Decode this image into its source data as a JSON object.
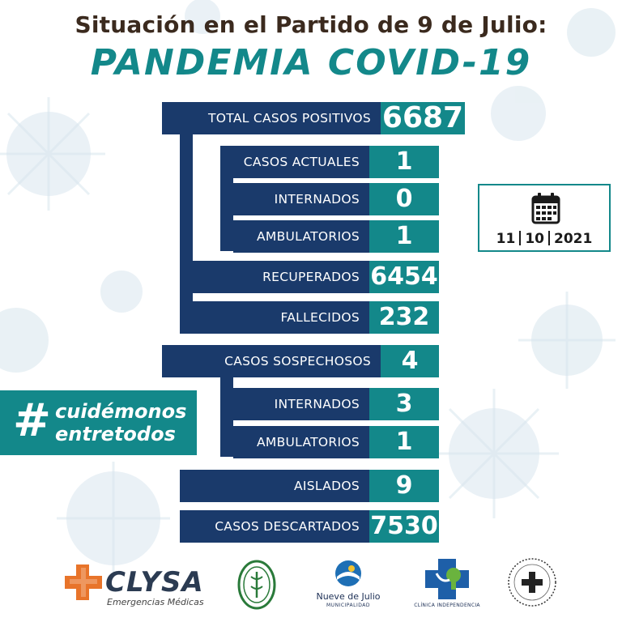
{
  "header": {
    "line1": "Situación en el Partido de 9 de Julio:",
    "line2": "PANDEMIA COVID-19"
  },
  "stats": {
    "total_positivos": {
      "label": "TOTAL CASOS POSITIVOS",
      "value": "6687"
    },
    "casos_actuales": {
      "label": "CASOS ACTUALES",
      "value": "1"
    },
    "internados_actuales": {
      "label": "INTERNADOS",
      "value": "0"
    },
    "ambulatorios_actuales": {
      "label": "AMBULATORIOS",
      "value": "1"
    },
    "recuperados": {
      "label": "RECUPERADOS",
      "value": "6454"
    },
    "fallecidos": {
      "label": "FALLECIDOS",
      "value": "232"
    },
    "sospechosos": {
      "label": "CASOS SOSPECHOSOS",
      "value": "4"
    },
    "internados_sospechosos": {
      "label": "INTERNADOS",
      "value": "3"
    },
    "ambulatorios_sospechosos": {
      "label": "AMBULATORIOS",
      "value": "1"
    },
    "aislados": {
      "label": "AISLADOS",
      "value": "9"
    },
    "descartados": {
      "label": "CASOS DESCARTADOS",
      "value": "7530"
    }
  },
  "date": {
    "day": "11",
    "month": "10",
    "year": "2021",
    "icon": "calendar-icon"
  },
  "hashtag": {
    "symbol": "#",
    "line1": "cuidémonos",
    "line2": "entretodos"
  },
  "logos": {
    "clysa": {
      "name": "CLYSA",
      "subtitle": "Emergencias Médicas"
    },
    "nueve_de_julio": {
      "name": "Nueve de Julio",
      "subtitle": "MUNICIPALIDAD"
    },
    "clinica": {
      "subtitle": "CLÍNICA INDEPENDENCIA"
    }
  },
  "colors": {
    "teal": "#13888a",
    "navy": "#1a3a6b",
    "title_brown": "#3b2a1e",
    "clysa_orange": "#e8742a"
  }
}
